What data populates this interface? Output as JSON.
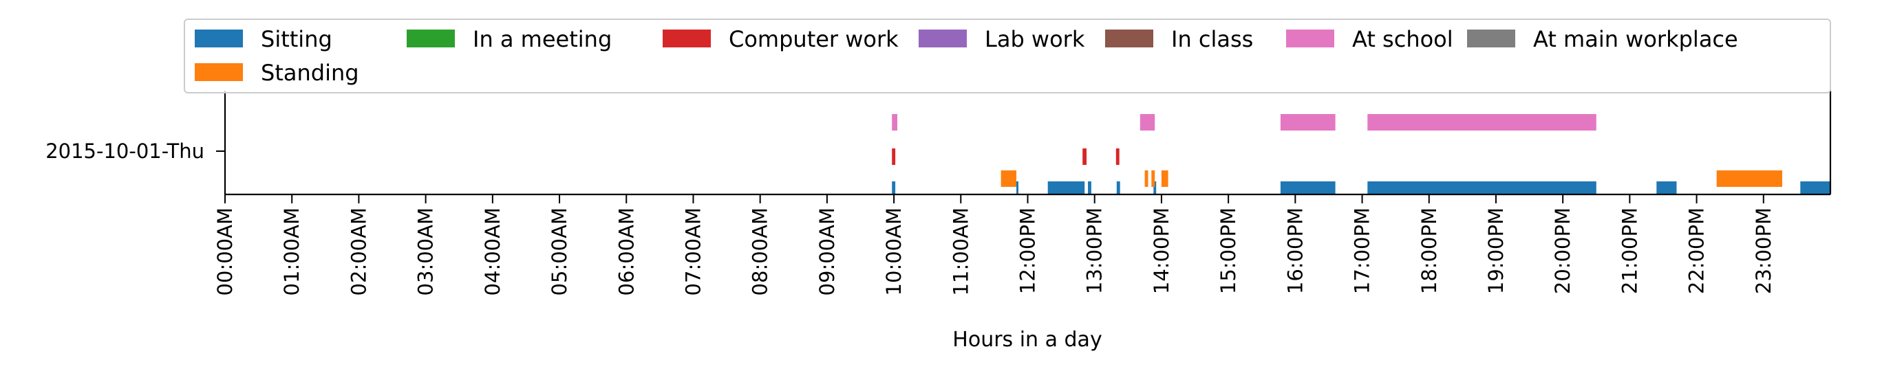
{
  "chart_data": {
    "type": "timeline",
    "title": "",
    "xlabel": "Hours in a day",
    "ylabel": "",
    "xlim_hours": [
      0,
      24
    ],
    "y_category": "2015-10-01-Thu",
    "x_ticks": [
      "00:00AM",
      "01:00AM",
      "02:00AM",
      "03:00AM",
      "04:00AM",
      "05:00AM",
      "06:00AM",
      "07:00AM",
      "08:00AM",
      "09:00AM",
      "10:00AM",
      "11:00AM",
      "12:00PM",
      "13:00PM",
      "14:00PM",
      "15:00PM",
      "16:00PM",
      "17:00PM",
      "18:00PM",
      "19:00PM",
      "20:00PM",
      "21:00PM",
      "22:00PM",
      "23:00PM"
    ],
    "grid": false,
    "legend_position": "top",
    "series": [
      {
        "name": "Sitting",
        "color": "#1f77b4",
        "level": 0,
        "intervals": [
          [
            9.97,
            10.02
          ],
          [
            11.83,
            11.86
          ],
          [
            12.3,
            12.85
          ],
          [
            12.9,
            12.95
          ],
          [
            13.33,
            13.38
          ],
          [
            13.88,
            13.92
          ],
          [
            15.78,
            16.6
          ],
          [
            17.08,
            20.5
          ],
          [
            21.4,
            21.7
          ],
          [
            23.55,
            24.0
          ]
        ]
      },
      {
        "name": "Standing",
        "color": "#ff7f0e",
        "level": 1,
        "intervals": [
          [
            11.6,
            11.83
          ],
          [
            13.75,
            13.8
          ],
          [
            13.85,
            13.9
          ],
          [
            14.0,
            14.1
          ],
          [
            22.3,
            23.28
          ]
        ]
      },
      {
        "name": "In a meeting",
        "color": "#2ca02c",
        "level": 2,
        "intervals": []
      },
      {
        "name": "Computer work",
        "color": "#d62728",
        "level": 2,
        "intervals": [
          [
            9.97,
            10.02
          ],
          [
            12.82,
            12.88
          ],
          [
            13.32,
            13.37
          ]
        ]
      },
      {
        "name": "Lab work",
        "color": "#9467bd",
        "level": 3,
        "intervals": []
      },
      {
        "name": "In class",
        "color": "#8c564b",
        "level": 3,
        "intervals": []
      },
      {
        "name": "At school",
        "color": "#e377c2",
        "level": 3,
        "intervals": [
          [
            9.97,
            10.05
          ],
          [
            13.68,
            13.9
          ],
          [
            15.78,
            16.6
          ],
          [
            17.08,
            20.5
          ]
        ]
      },
      {
        "name": "At main workplace",
        "color": "#7f7f7f",
        "level": 3,
        "intervals": []
      }
    ]
  }
}
